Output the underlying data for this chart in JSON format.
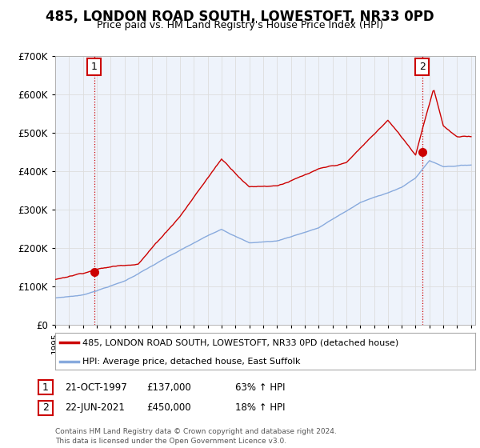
{
  "title": "485, LONDON ROAD SOUTH, LOWESTOFT, NR33 0PD",
  "subtitle": "Price paid vs. HM Land Registry's House Price Index (HPI)",
  "title_fontsize": 11,
  "subtitle_fontsize": 9,
  "legend_line1": "485, LONDON ROAD SOUTH, LOWESTOFT, NR33 0PD (detached house)",
  "legend_line2": "HPI: Average price, detached house, East Suffolk",
  "sale1_date": "21-OCT-1997",
  "sale1_price": "£137,000",
  "sale1_hpi": "63% ↑ HPI",
  "sale2_date": "22-JUN-2021",
  "sale2_price": "£450,000",
  "sale2_hpi": "18% ↑ HPI",
  "footer": "Contains HM Land Registry data © Crown copyright and database right 2024.\nThis data is licensed under the Open Government Licence v3.0.",
  "red_color": "#cc0000",
  "blue_color": "#88aadd",
  "background_color": "#ffffff",
  "grid_color": "#dddddd",
  "ylim": [
    0,
    700000
  ],
  "yticks": [
    0,
    100000,
    200000,
    300000,
    400000,
    500000,
    600000,
    700000
  ],
  "sale1_year": 1997.8,
  "sale1_value": 137000,
  "sale2_year": 2021.47,
  "sale2_value": 450000
}
